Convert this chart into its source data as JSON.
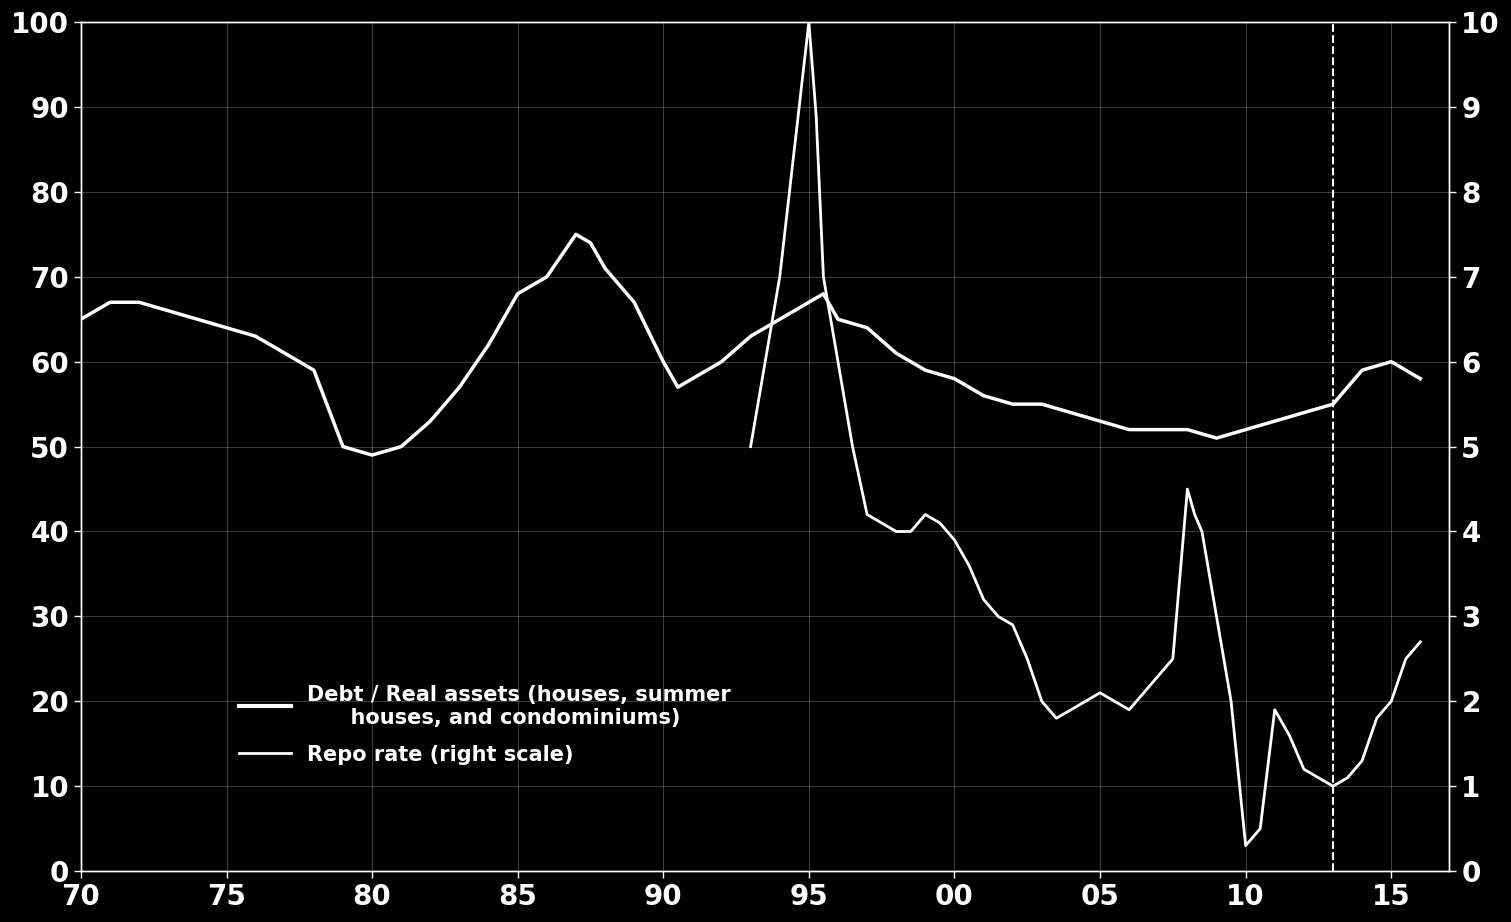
{
  "background_color": "#000000",
  "text_color": "#ffffff",
  "line_color": "#ffffff",
  "grid_color": "#ffffff",
  "dashed_line_x": 113.0,
  "xlim": [
    70,
    117
  ],
  "ylim_left": [
    0,
    100
  ],
  "ylim_right": [
    0,
    10
  ],
  "xtick_positions": [
    70,
    75,
    80,
    85,
    90,
    95,
    100,
    105,
    110,
    115
  ],
  "xtick_labels": [
    "70",
    "75",
    "80",
    "85",
    "90",
    "95",
    "00",
    "05",
    "10",
    "15"
  ],
  "yticks_left": [
    0,
    10,
    20,
    30,
    40,
    50,
    60,
    70,
    80,
    90,
    100
  ],
  "yticks_right": [
    0,
    1,
    2,
    3,
    4,
    5,
    6,
    7,
    8,
    9,
    10
  ],
  "legend_label1": "Debt / Real assets (houses, summer\n      houses, and condominiums)",
  "legend_label2": "Repo rate (right scale)",
  "debt_ratio": {
    "x": [
      70,
      71,
      72,
      73,
      74,
      75,
      76,
      77,
      78,
      79,
      80,
      81,
      82,
      83,
      84,
      85,
      86,
      87,
      87.5,
      88,
      89,
      90,
      90.5,
      91,
      92,
      93,
      94,
      95,
      95.5,
      96,
      97,
      98,
      99,
      100,
      101,
      102,
      103,
      104,
      105,
      106,
      107,
      108,
      109,
      110,
      111,
      112,
      113,
      114,
      115,
      116
    ],
    "y": [
      65,
      67,
      67,
      66,
      65,
      64,
      63,
      61,
      59,
      50,
      49,
      50,
      53,
      57,
      62,
      68,
      70,
      75,
      74,
      71,
      67,
      60,
      57,
      58,
      60,
      63,
      65,
      67,
      68,
      65,
      64,
      61,
      59,
      58,
      56,
      55,
      55,
      54,
      53,
      52,
      52,
      52,
      51,
      52,
      53,
      54,
      55,
      59,
      60,
      58
    ]
  },
  "repo_rate": {
    "x": [
      93,
      93.5,
      94,
      94.5,
      95,
      95.25,
      95.5,
      96,
      96.5,
      97,
      97.5,
      98,
      98.5,
      99,
      99.5,
      100,
      100.5,
      101,
      101.5,
      102,
      102.5,
      103,
      103.5,
      104,
      104.5,
      105,
      105.5,
      106,
      106.5,
      107,
      107.5,
      108,
      108.25,
      108.5,
      109,
      109.25,
      109.5,
      110,
      110.5,
      111,
      111.5,
      112,
      112.5,
      113,
      113.5,
      114,
      114.5,
      115,
      115.5,
      116
    ],
    "y": [
      5.0,
      6.0,
      7.0,
      8.5,
      10.0,
      8.9,
      7.0,
      6.0,
      5.0,
      4.2,
      4.1,
      4.0,
      4.0,
      4.2,
      4.1,
      3.9,
      3.6,
      3.2,
      3.0,
      2.9,
      2.5,
      2.0,
      1.8,
      1.9,
      2.0,
      2.1,
      2.0,
      1.9,
      2.1,
      2.3,
      2.5,
      4.5,
      4.2,
      4.0,
      3.0,
      2.5,
      2.0,
      0.3,
      0.5,
      1.9,
      1.6,
      1.2,
      1.1,
      1.0,
      1.1,
      1.3,
      1.8,
      2.0,
      2.5,
      2.7
    ]
  }
}
